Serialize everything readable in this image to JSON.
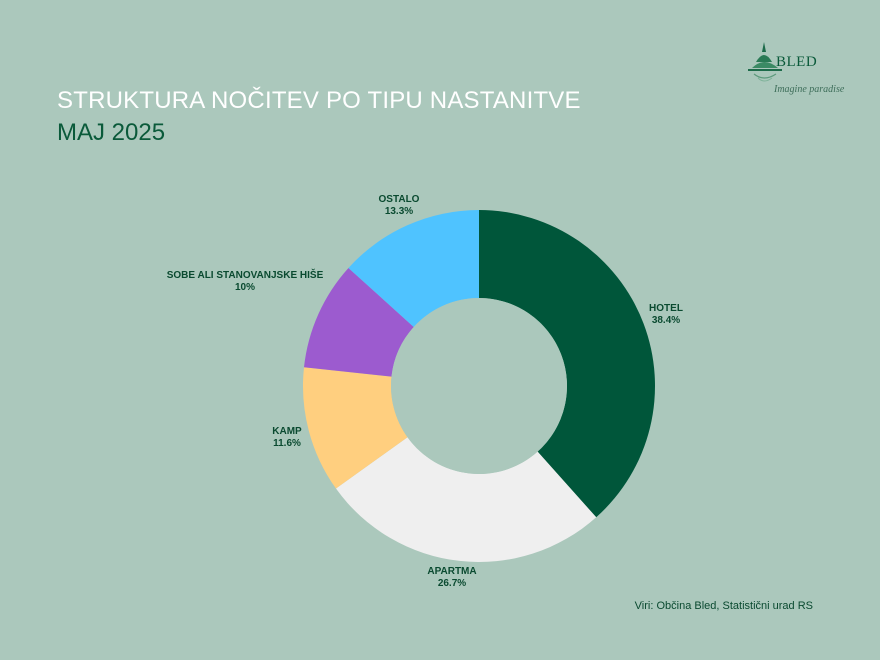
{
  "header": {
    "title": "STRUKTURA NOČITEV PO TIPU NASTANITVE",
    "subtitle": "MAJ 2025"
  },
  "logo": {
    "name": "BLED",
    "tagline": "Imagine paradise",
    "icon": "bled-island-logo"
  },
  "source": "Viri: Občina Bled, Statistični urad RS",
  "chart_data": {
    "type": "pie",
    "variant": "donut",
    "title": "STRUKTURA NOČITEV PO TIPU NASTANITVE",
    "subtitle": "MAJ 2025",
    "slices": [
      {
        "label": "HOTEL",
        "value": 38.4,
        "value_label": "38.4%",
        "color": "#00563a"
      },
      {
        "label": "APARTMA",
        "value": 26.7,
        "value_label": "26.7%",
        "color": "#efefef"
      },
      {
        "label": "KAMP",
        "value": 11.6,
        "value_label": "11.6%",
        "color": "#ffcf7f"
      },
      {
        "label": "SOBE ALI STANOVANJSKE HIŠE",
        "value": 10,
        "value_label": "10%",
        "color": "#9c5bcf"
      },
      {
        "label": "OSTALO",
        "value": 13.3,
        "value_label": "13.3%",
        "color": "#4fc3ff"
      }
    ],
    "start": "top",
    "direction": "clockwise",
    "legend": "none"
  }
}
